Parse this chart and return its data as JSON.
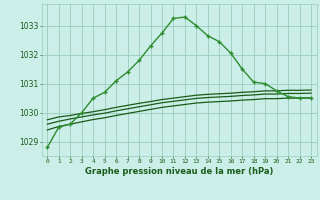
{
  "title": "Graphe pression niveau de la mer (hPa)",
  "background_color": "#cceee8",
  "grid_color": "#99ccbb",
  "line_color_dark": "#1a5c1a",
  "line_color_bright": "#2d8c2d",
  "xlim": [
    -0.5,
    23.5
  ],
  "ylim": [
    1028.5,
    1033.75
  ],
  "yticks": [
    1029,
    1030,
    1031,
    1032,
    1033
  ],
  "xticks": [
    0,
    1,
    2,
    3,
    4,
    5,
    6,
    7,
    8,
    9,
    10,
    11,
    12,
    13,
    14,
    15,
    16,
    17,
    18,
    19,
    20,
    21,
    22,
    23
  ],
  "series_main": [
    1028.8,
    1029.5,
    1029.6,
    1030.0,
    1030.5,
    1030.7,
    1031.1,
    1031.4,
    1031.8,
    1032.3,
    1032.75,
    1033.25,
    1033.3,
    1033.0,
    1032.65,
    1032.45,
    1032.05,
    1031.5,
    1031.05,
    1031.0,
    1030.75,
    1030.55,
    1030.5,
    1030.5
  ],
  "series_flat1": [
    1029.75,
    1029.85,
    1029.9,
    1029.97,
    1030.03,
    1030.1,
    1030.18,
    1030.25,
    1030.32,
    1030.38,
    1030.45,
    1030.5,
    1030.55,
    1030.6,
    1030.63,
    1030.65,
    1030.67,
    1030.7,
    1030.72,
    1030.75,
    1030.75,
    1030.77,
    1030.77,
    1030.78
  ],
  "series_flat2": [
    1029.6,
    1029.7,
    1029.78,
    1029.85,
    1029.92,
    1029.98,
    1030.06,
    1030.13,
    1030.2,
    1030.27,
    1030.34,
    1030.39,
    1030.44,
    1030.49,
    1030.52,
    1030.54,
    1030.56,
    1030.59,
    1030.61,
    1030.64,
    1030.64,
    1030.66,
    1030.66,
    1030.67
  ],
  "series_flat3": [
    1029.4,
    1029.52,
    1029.6,
    1029.68,
    1029.76,
    1029.82,
    1029.9,
    1029.97,
    1030.04,
    1030.11,
    1030.18,
    1030.23,
    1030.28,
    1030.33,
    1030.36,
    1030.38,
    1030.4,
    1030.43,
    1030.45,
    1030.48,
    1030.48,
    1030.5,
    1030.5,
    1030.51
  ]
}
